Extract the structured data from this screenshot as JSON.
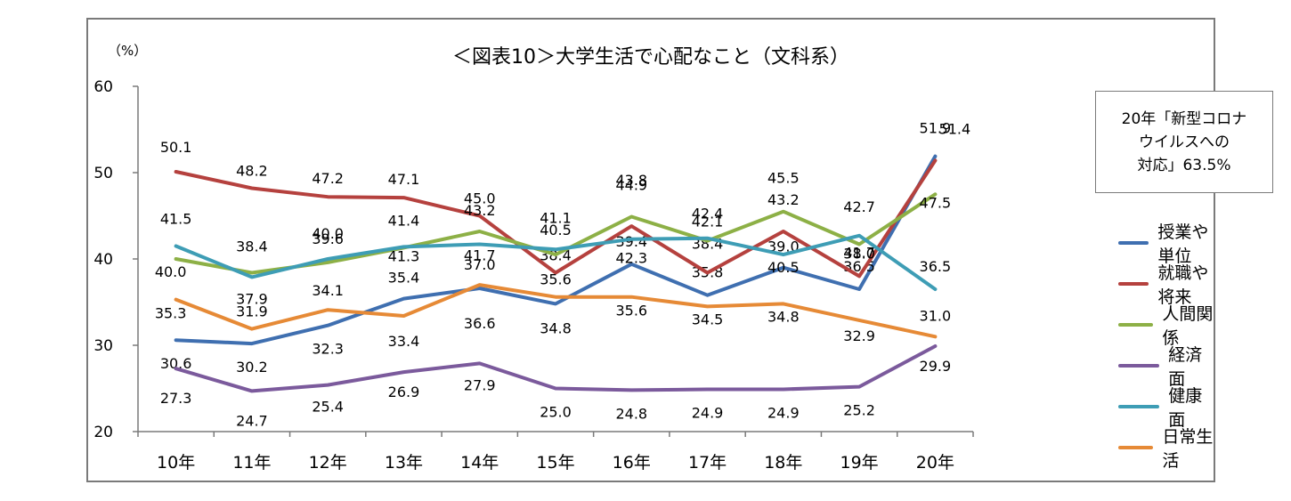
{
  "chart_data": {
    "type": "line",
    "title": "＜図表10＞大学生活で心配なこと（文科系）",
    "ylabel": "（%）",
    "ylim": [
      20,
      60
    ],
    "yticks": [
      20,
      30,
      40,
      50,
      60
    ],
    "categories": [
      "10年",
      "11年",
      "12年",
      "13年",
      "14年",
      "15年",
      "16年",
      "17年",
      "18年",
      "19年",
      "20年"
    ],
    "grid": false,
    "legend_position": "right",
    "series": [
      {
        "name": "授業や単位",
        "color": "#3f6fb0",
        "values": [
          30.6,
          30.2,
          32.3,
          35.4,
          36.6,
          34.8,
          39.4,
          35.8,
          39.0,
          36.5,
          51.9
        ]
      },
      {
        "name": "就職や将来",
        "color": "#b5413e",
        "values": [
          50.1,
          48.2,
          47.2,
          47.1,
          45.0,
          38.4,
          43.8,
          38.4,
          43.2,
          38.0,
          51.4
        ]
      },
      {
        "name": "人間関係",
        "color": "#8db046",
        "values": [
          40.0,
          38.4,
          39.6,
          41.3,
          43.2,
          40.5,
          44.9,
          42.1,
          45.5,
          41.7,
          47.5
        ]
      },
      {
        "name": "経済面",
        "color": "#7b5a9c",
        "values": [
          27.3,
          24.7,
          25.4,
          26.9,
          27.9,
          25.0,
          24.8,
          24.9,
          24.9,
          25.2,
          29.9
        ]
      },
      {
        "name": "健康面",
        "color": "#3e9db5",
        "values": [
          41.5,
          37.9,
          40.0,
          41.4,
          41.7,
          41.1,
          42.3,
          42.4,
          40.5,
          42.7,
          36.5
        ]
      },
      {
        "name": "日常生活",
        "color": "#e68a36",
        "values": [
          35.3,
          31.9,
          34.1,
          33.4,
          37.0,
          35.6,
          35.6,
          34.5,
          34.8,
          32.9,
          31.0
        ]
      }
    ],
    "annotation": "20年「新型コロナウイルスへの対応」63.5%",
    "annotation_lines": [
      "20年「新型コロナ",
      "ウイルスへの",
      "対応」63.5%"
    ]
  }
}
